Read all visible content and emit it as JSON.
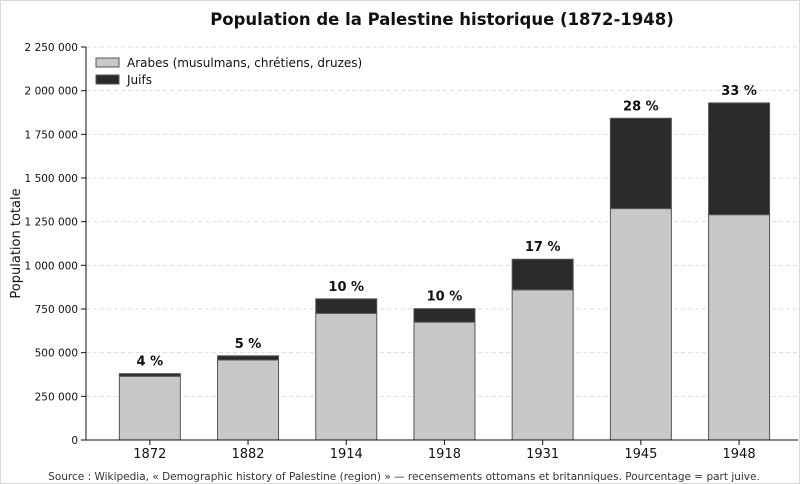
{
  "chart_data": {
    "type": "bar",
    "stacked": true,
    "title": "Population de la Palestine historique (1872-1948)",
    "xlabel": "",
    "ylabel": "Population totale",
    "categories": [
      "1872",
      "1882",
      "1914",
      "1918",
      "1931",
      "1945",
      "1948"
    ],
    "series": [
      {
        "name": "Arabes (musulmans, chrétiens, druzes)",
        "values": [
          365000,
          458000,
          725000,
          675000,
          860000,
          1325000,
          1290000
        ],
        "color": "#c8c8c8"
      },
      {
        "name": "Juifs",
        "values": [
          15000,
          24000,
          83000,
          77000,
          175000,
          517000,
          640000
        ],
        "color": "#2a2a2a"
      }
    ],
    "annotations": [
      "4 %",
      "5 %",
      "10 %",
      "10 %",
      "17 %",
      "28 %",
      "33 %"
    ],
    "ylim": [
      0,
      2250000
    ],
    "yticks": [
      0,
      250000,
      500000,
      750000,
      1000000,
      1250000,
      1500000,
      1750000,
      2000000,
      2250000
    ],
    "ytick_labels": [
      "0",
      "250 000",
      "500 000",
      "750 000",
      "1 000 000",
      "1 250 000",
      "1 500 000",
      "1 750 000",
      "2 000 000",
      "2 250 000"
    ],
    "grid": "horizontal dashed",
    "legend_position": "top-left",
    "source": "Source : Wikipedia, « Demographic history of Palestine (region) » — recensements ottomans et britanniques.  Pourcentage = part juive."
  }
}
